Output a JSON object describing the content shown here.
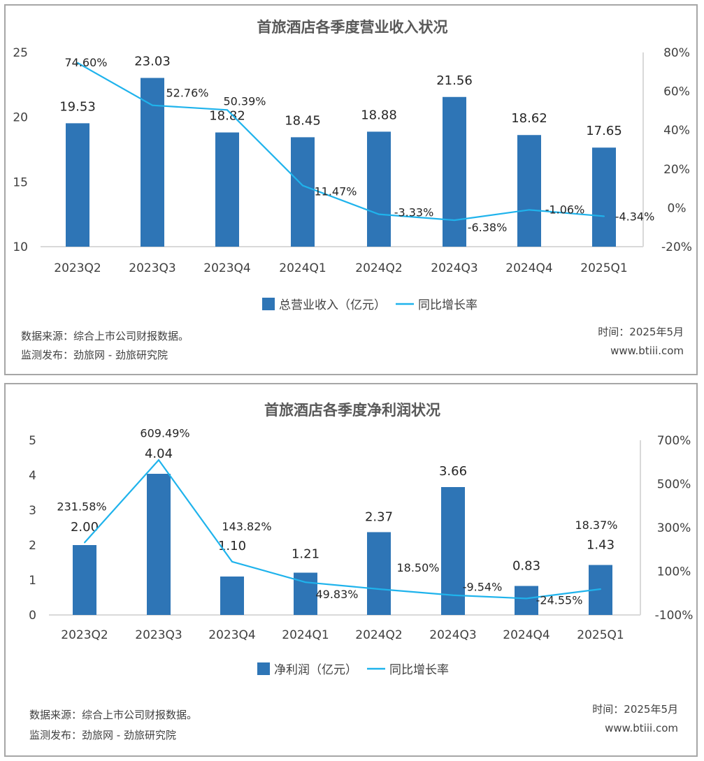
{
  "colors": {
    "bar": "#2e75b6",
    "line": "#1fb3ec",
    "axis": "#d9d9d9",
    "text": "#404040"
  },
  "chart_data": [
    {
      "type": "bar+line",
      "title": "首旅酒店各季度营业收入状况",
      "categories": [
        "2023Q2",
        "2023Q3",
        "2023Q4",
        "2024Q1",
        "2024Q2",
        "2024Q3",
        "2024Q4",
        "2025Q1"
      ],
      "series": [
        {
          "name": "总营业收入（亿元）",
          "type": "bar",
          "axis": "left",
          "values": [
            19.53,
            23.03,
            18.82,
            18.45,
            18.88,
            21.56,
            18.62,
            17.65
          ],
          "labels": [
            "19.53",
            "23.03",
            "18.82",
            "18.45",
            "18.88",
            "21.56",
            "18.62",
            "17.65"
          ]
        },
        {
          "name": "同比增长率",
          "type": "line",
          "axis": "right",
          "values": [
            74.6,
            52.76,
            50.39,
            11.47,
            -3.33,
            -6.38,
            -1.06,
            -4.34
          ],
          "labels": [
            "74.60%",
            "52.76%",
            "50.39%",
            "11.47%",
            "-3.33%",
            "-6.38%",
            "-1.06%",
            "-4.34%"
          ]
        }
      ],
      "left_axis": {
        "range": [
          10,
          25
        ],
        "ticks": [
          "25",
          "20",
          "15",
          "10"
        ]
      },
      "right_axis": {
        "range": [
          -20,
          80
        ],
        "ticks": [
          "80%",
          "60%",
          "40%",
          "20%",
          "0%",
          "-20%"
        ]
      },
      "grid": false,
      "legend": "bottom",
      "source": "数据来源：综合上市公司财报数据。",
      "publisher": "监测发布：劲旅网 - 劲旅研究院",
      "date": "时间：2025年5月",
      "website": "www.btiii.com"
    },
    {
      "type": "bar+line",
      "title": "首旅酒店各季度净利润状况",
      "categories": [
        "2023Q2",
        "2023Q3",
        "2023Q4",
        "2024Q1",
        "2024Q2",
        "2024Q3",
        "2024Q4",
        "2025Q1"
      ],
      "series": [
        {
          "name": "净利润（亿元）",
          "type": "bar",
          "axis": "left",
          "values": [
            2.0,
            4.04,
            1.1,
            1.21,
            2.37,
            3.66,
            0.83,
            1.43
          ],
          "labels": [
            "2.00",
            "4.04",
            "1.10",
            "1.21",
            "2.37",
            "3.66",
            "0.83",
            "1.43"
          ]
        },
        {
          "name": "同比增长率",
          "type": "line",
          "axis": "right",
          "values": [
            231.58,
            609.49,
            143.82,
            49.83,
            18.5,
            -9.54,
            -24.55,
            18.37
          ],
          "labels": [
            "231.58%",
            "609.49%",
            "143.82%",
            "49.83%",
            "18.50%",
            "-9.54%",
            "-24.55%",
            "18.37%"
          ]
        }
      ],
      "left_axis": {
        "range": [
          0,
          5
        ],
        "ticks": [
          "5",
          "4",
          "3",
          "2",
          "1",
          "0"
        ]
      },
      "right_axis": {
        "range": [
          -100,
          700
        ],
        "ticks": [
          "700%",
          "500%",
          "300%",
          "100%",
          "-100%"
        ]
      },
      "grid": false,
      "legend": "bottom",
      "source": "数据来源：综合上市公司财报数据。",
      "publisher": "监测发布：劲旅网 - 劲旅研究院",
      "date": "时间：2025年5月",
      "website": "www.btiii.com"
    }
  ]
}
